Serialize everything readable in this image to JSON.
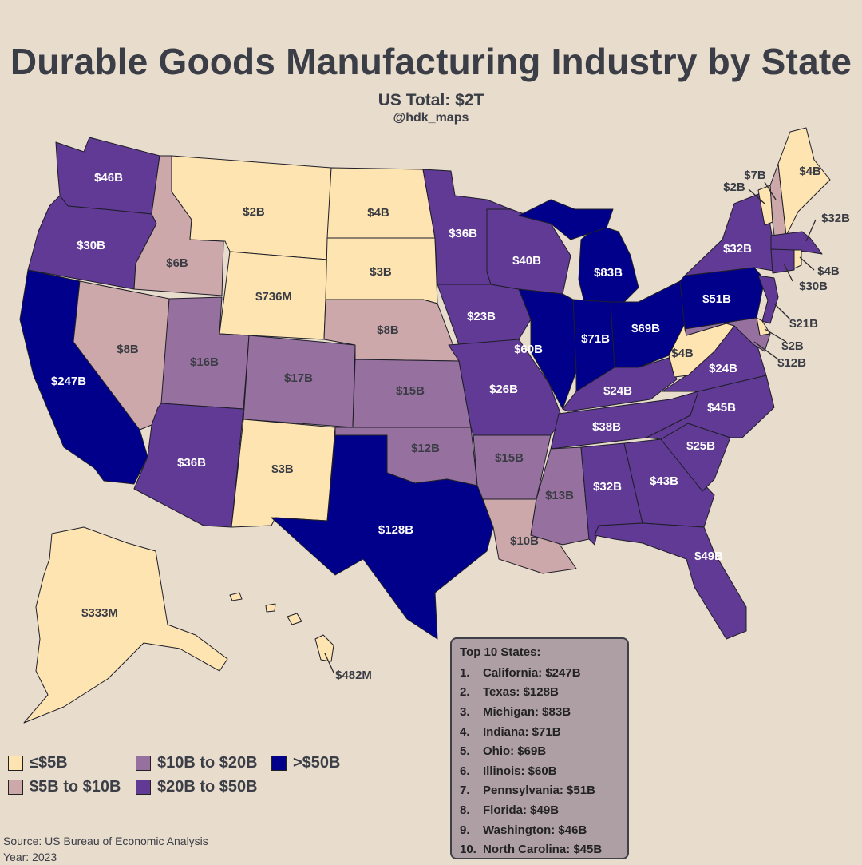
{
  "title": "Durable Goods Manufacturing Industry by State",
  "subtitle": "US Total: $2T",
  "handle": "@hdk_maps",
  "colors": {
    "background": "#e8dccd",
    "le5": "#fde4b1",
    "5to10": "#cda8aa",
    "10to20": "#96709f",
    "20to50": "#603a94",
    "gt50": "#00008b"
  },
  "legend": [
    {
      "key": "le5",
      "label": "≤$5B"
    },
    {
      "key": "5to10",
      "label": "$5B to $10B"
    },
    {
      "key": "10to20",
      "label": "$10B to $20B"
    },
    {
      "key": "20to50",
      "label": "$20B to $50B"
    },
    {
      "key": "gt50",
      "label": ">$50B"
    }
  ],
  "states": {
    "WA": {
      "label": "$46B",
      "bin": "20to50"
    },
    "OR": {
      "label": "$30B",
      "bin": "20to50"
    },
    "CA": {
      "label": "$247B",
      "bin": "gt50"
    },
    "ID": {
      "label": "$6B",
      "bin": "5to10"
    },
    "NV": {
      "label": "$8B",
      "bin": "5to10"
    },
    "MT": {
      "label": "$2B",
      "bin": "le5"
    },
    "WY": {
      "label": "$736M",
      "bin": "le5"
    },
    "UT": {
      "label": "$16B",
      "bin": "10to20"
    },
    "AZ": {
      "label": "$36B",
      "bin": "20to50"
    },
    "CO": {
      "label": "$17B",
      "bin": "10to20"
    },
    "NM": {
      "label": "$3B",
      "bin": "le5"
    },
    "ND": {
      "label": "$4B",
      "bin": "le5"
    },
    "SD": {
      "label": "$3B",
      "bin": "le5"
    },
    "NE": {
      "label": "$8B",
      "bin": "5to10"
    },
    "KS": {
      "label": "$15B",
      "bin": "10to20"
    },
    "OK": {
      "label": "$12B",
      "bin": "10to20"
    },
    "TX": {
      "label": "$128B",
      "bin": "gt50"
    },
    "MN": {
      "label": "$36B",
      "bin": "20to50"
    },
    "IA": {
      "label": "$23B",
      "bin": "20to50"
    },
    "MO": {
      "label": "$26B",
      "bin": "20to50"
    },
    "AR": {
      "label": "$15B",
      "bin": "10to20"
    },
    "LA": {
      "label": "$10B",
      "bin": "5to10"
    },
    "WI": {
      "label": "$40B",
      "bin": "20to50"
    },
    "IL": {
      "label": "$60B",
      "bin": "gt50"
    },
    "MI": {
      "label": "$83B",
      "bin": "gt50"
    },
    "IN": {
      "label": "$71B",
      "bin": "gt50"
    },
    "OH": {
      "label": "$69B",
      "bin": "gt50"
    },
    "KY": {
      "label": "$24B",
      "bin": "20to50"
    },
    "TN": {
      "label": "$38B",
      "bin": "20to50"
    },
    "MS": {
      "label": "$13B",
      "bin": "10to20"
    },
    "AL": {
      "label": "$32B",
      "bin": "20to50"
    },
    "GA": {
      "label": "$43B",
      "bin": "20to50"
    },
    "FL": {
      "label": "$49B",
      "bin": "20to50"
    },
    "SC": {
      "label": "$25B",
      "bin": "20to50"
    },
    "NC": {
      "label": "$45B",
      "bin": "20to50"
    },
    "VA": {
      "label": "$24B",
      "bin": "20to50"
    },
    "WV": {
      "label": "$4B",
      "bin": "le5"
    },
    "PA": {
      "label": "$51B",
      "bin": "gt50"
    },
    "NY": {
      "label": "$32B",
      "bin": "20to50"
    },
    "ME": {
      "label": "$4B",
      "bin": "le5"
    },
    "VT": {
      "label": "$2B",
      "bin": "le5"
    },
    "NH": {
      "label": "$7B",
      "bin": "5to10"
    },
    "MA": {
      "label": "$32B",
      "bin": "20to50"
    },
    "RI": {
      "label": "$4B",
      "bin": "le5"
    },
    "CT": {
      "label": "$30B",
      "bin": "20to50"
    },
    "NJ": {
      "label": "$21B",
      "bin": "20to50"
    },
    "DE": {
      "label": "$2B",
      "bin": "le5"
    },
    "MD": {
      "label": "$12B",
      "bin": "10to20"
    },
    "AK": {
      "label": "$333M",
      "bin": "le5"
    },
    "HI": {
      "label": "$482M",
      "bin": "le5"
    }
  },
  "top10": {
    "heading": "Top 10 States:",
    "items": [
      {
        "rank": "1.",
        "text": "California: $247B"
      },
      {
        "rank": "2.",
        "text": "Texas: $128B"
      },
      {
        "rank": "3.",
        "text": "Michigan: $83B"
      },
      {
        "rank": "4.",
        "text": "Indiana: $71B"
      },
      {
        "rank": "5.",
        "text": "Ohio: $69B"
      },
      {
        "rank": "6.",
        "text": "Illinois: $60B"
      },
      {
        "rank": "7.",
        "text": "Pennsylvania: $51B"
      },
      {
        "rank": "8.",
        "text": "Florida: $49B"
      },
      {
        "rank": "9.",
        "text": "Washington: $46B"
      },
      {
        "rank": "10.",
        "text": "North Carolina: $45B"
      }
    ]
  },
  "source": "Source: US Bureau of Economic Analysis",
  "year": "Year: 2023"
}
